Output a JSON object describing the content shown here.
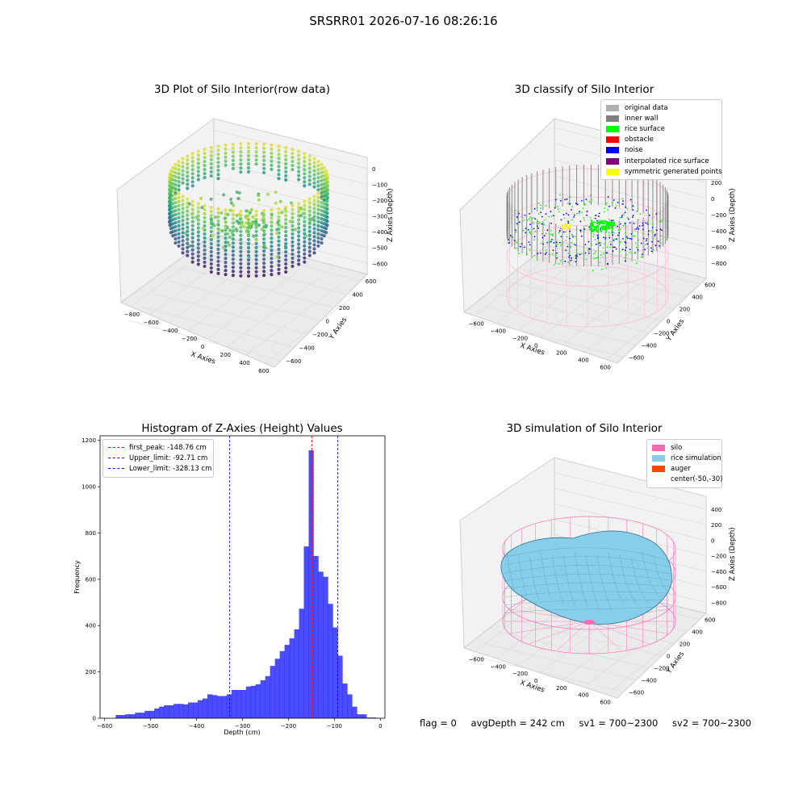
{
  "figure": {
    "suptitle": "SRSRR01 2026-07-16 08:26:16",
    "footer": {
      "flag": "flag = 0",
      "avg_depth": "avgDepth = 242 cm",
      "sv1": "sv1 = 700~2300",
      "sv2": "sv2 = 700~2300"
    }
  },
  "panels": {
    "raw3d": {
      "title": "3D Plot of Silo Interior(row data)",
      "xlabel": "X Axies",
      "ylabel": "Y Axies",
      "zlabel": "Z Axies (Depth)",
      "xticks": [
        "−800",
        "−600",
        "−400",
        "−200",
        "0",
        "200",
        "400",
        "600"
      ],
      "yticks": [
        "−600",
        "−400",
        "−200",
        "0",
        "200",
        "400",
        "600"
      ],
      "zticks": [
        "0",
        "−100",
        "−200",
        "−300",
        "−400",
        "−500",
        "−600"
      ],
      "colormap": "viridis"
    },
    "classify3d": {
      "title": "3D classify of Silo Interior",
      "xlabel": "X Axies",
      "ylabel": "Y Axies",
      "zlabel": "Z Axies (Depth)",
      "xticks": [
        "−600",
        "−400",
        "−200",
        "0",
        "200",
        "400",
        "600"
      ],
      "yticks": [
        "−600",
        "−400",
        "−200",
        "0",
        "200",
        "400",
        "600"
      ],
      "zticks": [
        "400",
        "200",
        "0",
        "−200",
        "−400",
        "−600",
        "−800"
      ],
      "legend": [
        {
          "label": "original data",
          "color": "#b0b0b0"
        },
        {
          "label": "inner wall",
          "color": "#808080"
        },
        {
          "label": "rice surface",
          "color": "#00ff00"
        },
        {
          "label": "obstacle",
          "color": "#ff0000"
        },
        {
          "label": "noise",
          "color": "#0000ff"
        },
        {
          "label": "interpolated rice surface",
          "color": "#800080"
        },
        {
          "label": "symmetric generated points",
          "color": "#ffff00"
        }
      ]
    },
    "sim3d": {
      "title": "3D simulation of Silo Interior",
      "xlabel": "X Axies",
      "ylabel": "Y Axies",
      "zlabel": "Z Axies (Depth)",
      "xticks": [
        "−600",
        "−400",
        "−200",
        "0",
        "200",
        "400",
        "600"
      ],
      "yticks": [
        "−600",
        "−400",
        "−200",
        "0",
        "200",
        "400",
        "600"
      ],
      "zticks": [
        "400",
        "200",
        "0",
        "−200",
        "−400",
        "−600",
        "−800"
      ],
      "legend": [
        {
          "label": "silo",
          "color": "#ff69b4"
        },
        {
          "label": "rice simulation",
          "color": "#87ceeb"
        },
        {
          "label": "auger",
          "color": "#ff4500"
        },
        {
          "label": "center(-50,-30)",
          "color": ""
        }
      ]
    }
  },
  "chart_data": {
    "type": "bar",
    "title": "Histogram of Z-Axies (Height) Values",
    "xlabel": "Depth (cm)",
    "ylabel": "Frequency",
    "xlim": [
      -610,
      10
    ],
    "ylim": [
      0,
      1220
    ],
    "xticks": [
      -600,
      -500,
      -400,
      -300,
      -200,
      -100,
      0
    ],
    "yticks": [
      0,
      200,
      400,
      600,
      800,
      1000,
      1200
    ],
    "bar_color": "#0000ff",
    "bin_width": 10.5,
    "bins": [
      [
        -576,
        14
      ],
      [
        -565.5,
        14
      ],
      [
        -555,
        17
      ],
      [
        -544.5,
        17
      ],
      [
        -534,
        24
      ],
      [
        -523.5,
        24
      ],
      [
        -513,
        32
      ],
      [
        -502.5,
        32
      ],
      [
        -492,
        42
      ],
      [
        -481.5,
        50
      ],
      [
        -471,
        56
      ],
      [
        -460.5,
        56
      ],
      [
        -450,
        62
      ],
      [
        -439.5,
        62
      ],
      [
        -429,
        60
      ],
      [
        -418.5,
        68
      ],
      [
        -408,
        68
      ],
      [
        -397.5,
        78
      ],
      [
        -387,
        85
      ],
      [
        -376.5,
        103
      ],
      [
        -366,
        100
      ],
      [
        -355.5,
        96
      ],
      [
        -345,
        96
      ],
      [
        -334.5,
        103
      ],
      [
        -324,
        122
      ],
      [
        -313.5,
        122
      ],
      [
        -303,
        122
      ],
      [
        -292.5,
        137
      ],
      [
        -282,
        140
      ],
      [
        -271.5,
        147
      ],
      [
        -261,
        164
      ],
      [
        -250.5,
        182
      ],
      [
        -240,
        226
      ],
      [
        -229.5,
        257
      ],
      [
        -219,
        290
      ],
      [
        -208.5,
        317
      ],
      [
        -198,
        345
      ],
      [
        -187.5,
        384
      ],
      [
        -177,
        473
      ],
      [
        -166.5,
        742
      ],
      [
        -156,
        1157
      ],
      [
        -145.5,
        701
      ],
      [
        -135,
        633
      ],
      [
        -124.5,
        611
      ],
      [
        -114,
        494
      ],
      [
        -103.5,
        392
      ],
      [
        -93,
        270
      ],
      [
        -82.5,
        150
      ],
      [
        -72,
        103
      ],
      [
        -61.5,
        50
      ],
      [
        -51,
        17
      ],
      [
        -40.5,
        17
      ],
      [
        -30,
        3
      ],
      [
        -19.5,
        3
      ]
    ],
    "vlines": [
      {
        "x": -148.76,
        "color": "#ff0000",
        "label": "first_peak: -148.76 cm"
      },
      {
        "x": -92.71,
        "color": "#0000ff",
        "label": "Upper_limit: -92.71 cm"
      },
      {
        "x": -328.13,
        "color": "#0000ff",
        "label": "Lower_limit: -328.13 cm"
      }
    ],
    "legend_position": "upper left"
  }
}
